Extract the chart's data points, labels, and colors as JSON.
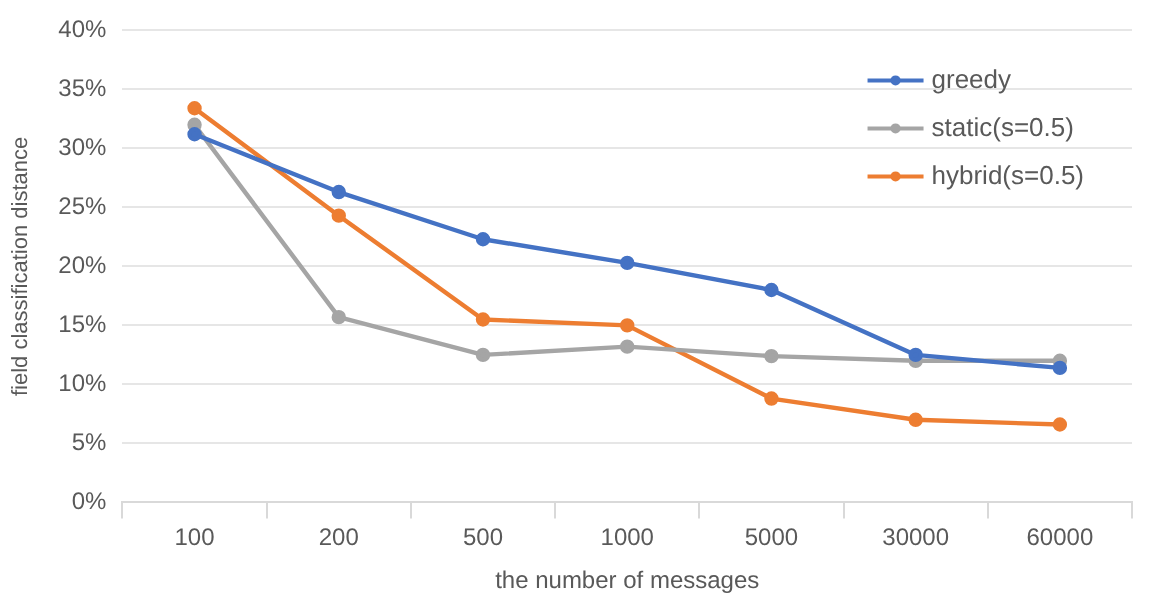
{
  "chart_data": {
    "type": "line",
    "xlabel": "the number of messages",
    "ylabel": "field classification distance",
    "categories": [
      "100",
      "200",
      "500",
      "1000",
      "5000",
      "30000",
      "60000"
    ],
    "series": [
      {
        "name": "greedy",
        "color": "#4472c4",
        "values": [
          31.2,
          26.3,
          22.3,
          20.3,
          18.0,
          12.5,
          11.4
        ]
      },
      {
        "name": "static(s=0.5)",
        "color": "#a5a5a5",
        "values": [
          32.0,
          15.7,
          12.5,
          13.2,
          12.4,
          12.0,
          12.0
        ]
      },
      {
        "name": "hybrid(s=0.5)",
        "color": "#ed7d31",
        "values": [
          33.4,
          24.3,
          15.5,
          15.0,
          8.8,
          7.0,
          6.6
        ]
      }
    ],
    "ylim": [
      0,
      40
    ],
    "yticks": [
      {
        "value": 0,
        "label": "0%"
      },
      {
        "value": 5,
        "label": "5%"
      },
      {
        "value": 10,
        "label": "10%"
      },
      {
        "value": 15,
        "label": "15%"
      },
      {
        "value": 20,
        "label": "20%"
      },
      {
        "value": 25,
        "label": "25%"
      },
      {
        "value": 30,
        "label": "30%"
      },
      {
        "value": 35,
        "label": "35%"
      },
      {
        "value": 40,
        "label": "40%"
      }
    ],
    "grid": "y",
    "legend": "top right",
    "marker": "circle",
    "line_style": "solid"
  }
}
